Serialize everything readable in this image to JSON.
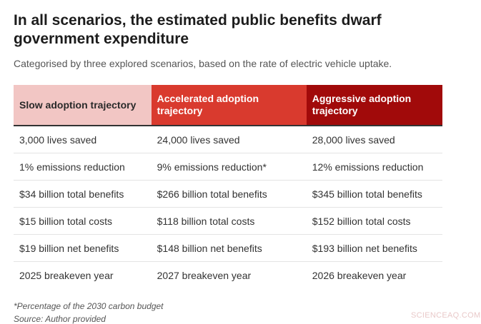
{
  "title": "In all scenarios, the estimated public benefits dwarf government expenditure",
  "subtitle": "Categorised by three explored scenarios, based on the rate of electric vehicle uptake.",
  "footnote": "*Percentage of the 2030 carbon budget",
  "source": "Source: Author provided",
  "watermark": "SCIENCEAQ.COM",
  "colors": {
    "header_slow": "#f2c6c4",
    "header_accelerated": "#d93a2e",
    "header_aggressive": "#a10a0a"
  },
  "chart_data": {
    "type": "table",
    "columns": [
      "Slow adoption trajectory",
      "Accelerated adoption trajectory",
      "Aggressive adoption trajectory"
    ],
    "rows": [
      [
        "3,000 lives saved",
        "24,000 lives saved",
        "28,000 lives saved"
      ],
      [
        "1% emissions reduction",
        "9% emissions reduction*",
        "12% emissions reduction"
      ],
      [
        "$34 billion total benefits",
        "$266 billion total benefits",
        "$345 billion total benefits"
      ],
      [
        "$15 billion total costs",
        "$118 billion total costs",
        "$152 billion total costs"
      ],
      [
        "$19 billion net benefits",
        "$148 billion net benefits",
        "$193 billion net benefits"
      ],
      [
        "2025 breakeven year",
        "2027 breakeven year",
        "2026 breakeven year"
      ]
    ]
  }
}
